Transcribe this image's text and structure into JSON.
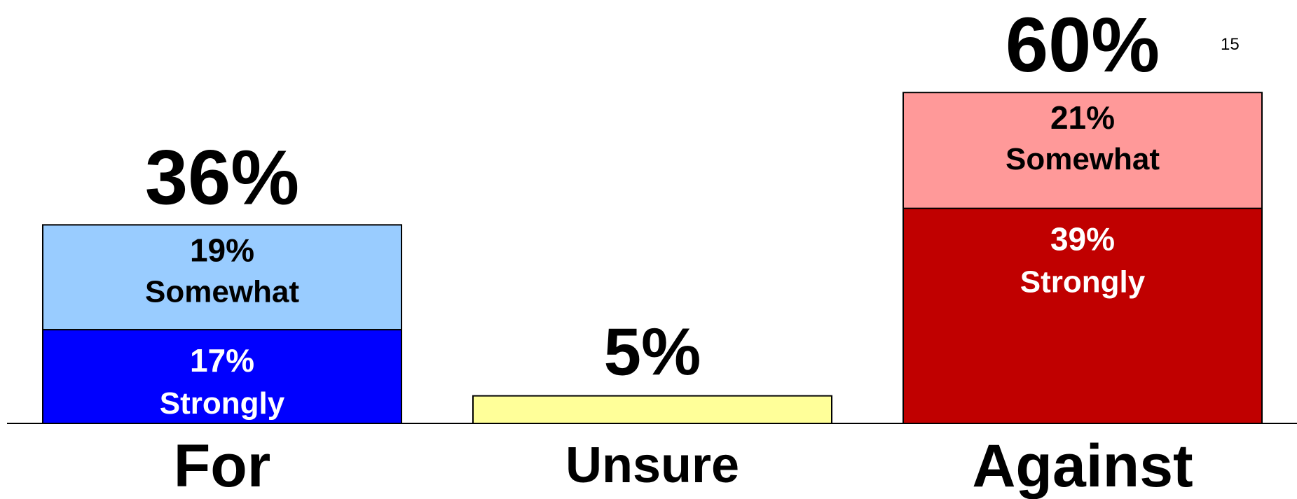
{
  "page_number": "15",
  "chart_data": {
    "type": "bar",
    "stacked": true,
    "categories": [
      "For",
      "Unsure",
      "Against"
    ],
    "totals": [
      "36%",
      "5%",
      "60%"
    ],
    "ylim": [
      0,
      60
    ],
    "grid": false,
    "segments": [
      [
        {
          "value": 17,
          "label": "17%",
          "sublabel": "Strongly",
          "color": "#0000FF",
          "text_color": "#FFFFFF"
        },
        {
          "value": 19,
          "label": "19%",
          "sublabel": "Somewhat",
          "color": "#99CCFF",
          "text_color": "#000000"
        }
      ],
      [
        {
          "value": 5,
          "label": "",
          "sublabel": "",
          "color": "#FFFF99",
          "text_color": "#000000"
        }
      ],
      [
        {
          "value": 39,
          "label": "39%",
          "sublabel": "Strongly",
          "color": "#C00000",
          "text_color": "#FFFFFF"
        },
        {
          "value": 21,
          "label": "21%",
          "sublabel": "Somewhat",
          "color": "#FF9999",
          "text_color": "#000000"
        }
      ]
    ]
  }
}
